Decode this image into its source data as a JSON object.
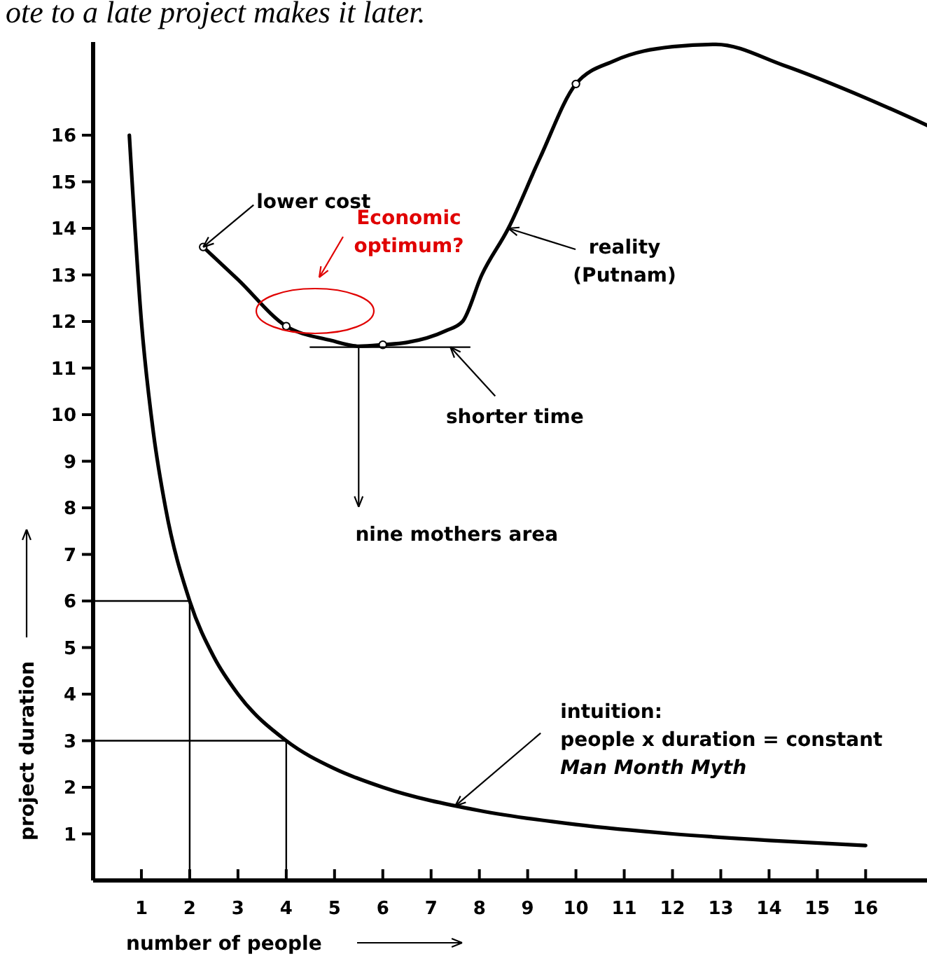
{
  "chart_data": {
    "type": "line",
    "title": "ote to a late project makes it later.",
    "xlabel": "number of people",
    "ylabel": "project duration",
    "xlim": [
      0,
      17.3
    ],
    "ylim": [
      0,
      18
    ],
    "xticks": [
      1,
      2,
      3,
      4,
      5,
      6,
      7,
      8,
      9,
      10,
      11,
      12,
      13,
      14,
      15,
      16
    ],
    "yticks": [
      1,
      2,
      3,
      4,
      5,
      6,
      7,
      8,
      9,
      10,
      11,
      12,
      13,
      14,
      15,
      16
    ],
    "series": [
      {
        "color": "#000000",
        "x": [
          0.75,
          1,
          1.25,
          1.5,
          2,
          2.5,
          3,
          4,
          5,
          6,
          8,
          10,
          12,
          14,
          16
        ],
        "values": [
          16,
          12,
          9.6,
          8,
          6,
          4.8,
          4,
          3,
          2.4,
          2,
          1.5,
          1.2,
          1,
          0.86,
          0.75
        ]
      },
      {
        "color": "#000000",
        "x": [
          2.28,
          3.0,
          4.0,
          4.9,
          5.5,
          6.0,
          6.5,
          7.3,
          7.65,
          8.05,
          8.6,
          9.25,
          10.0,
          10.8,
          12.0,
          12.9,
          14.3,
          16.0,
          17.3
        ],
        "values": [
          13.6,
          12.9,
          11.9,
          11.6,
          11.47,
          11.5,
          11.55,
          11.8,
          12.0,
          13.0,
          14.0,
          15.5,
          17.1,
          17.6,
          17.9,
          17.95,
          17.5,
          16.8,
          16.2
        ]
      },
      {
        "type": "scatter",
        "marker": "circle",
        "color": "#000000",
        "x": [
          2.28,
          4.0,
          6.0,
          10.0
        ],
        "values": [
          13.6,
          11.9,
          11.5,
          17.1
        ]
      },
      {
        "color": "#000000",
        "x": [
          0,
          2,
          2
        ],
        "values": [
          6,
          6,
          0
        ]
      },
      {
        "color": "#000000",
        "x": [
          0,
          4,
          4
        ],
        "values": [
          3,
          3,
          0
        ]
      },
      {
        "color": "#000000",
        "x": [
          4.5,
          7.8
        ],
        "values": [
          11.45,
          11.45
        ]
      }
    ],
    "annotations": [
      {
        "text": "lower cost",
        "x": 2.28,
        "y": 13.6
      },
      "Economic\noptimum?",
      {
        "text": "reality\n(Putnam)",
        "x": 8.6,
        "y": 14.0
      },
      {
        "text": "shorter time",
        "x": 7.4,
        "y": 11.45
      },
      {
        "text": "nine mothers area",
        "x": 5.5,
        "y": 11.45
      },
      {
        "text": "intuition:\npeople x duration = constant\nMan Month Myth",
        "x": 7.5,
        "y": 1.6
      }
    ]
  }
}
